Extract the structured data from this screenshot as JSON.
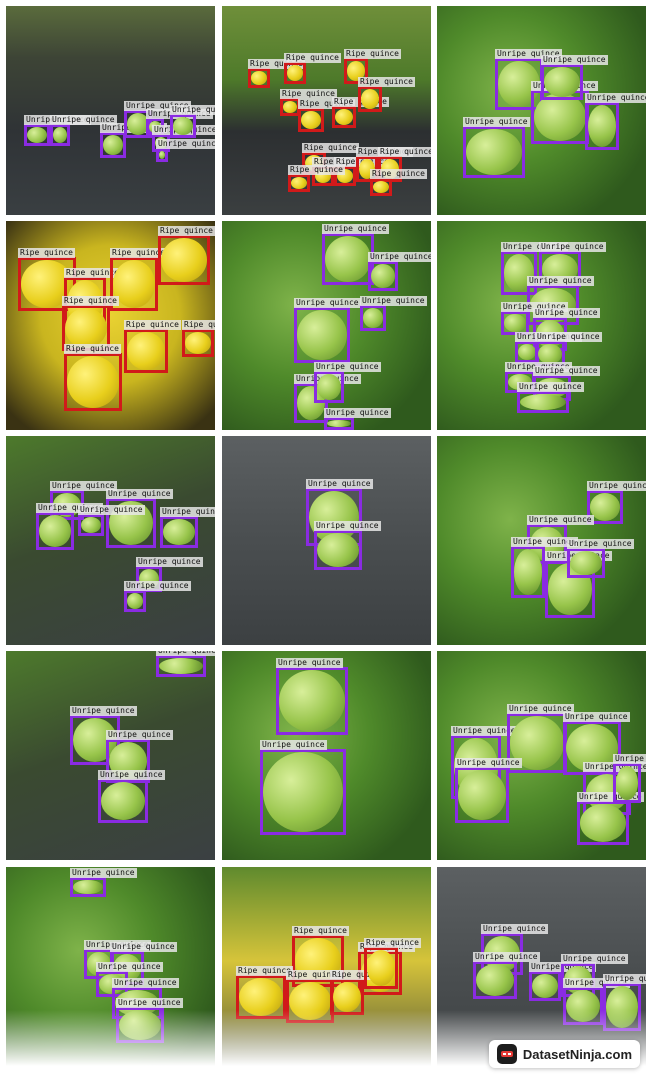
{
  "brand": {
    "name": "DatasetNinja.com",
    "icon": "ninja-logo-icon"
  },
  "colors": {
    "unripe": "#8a2be2",
    "ripe": "#d11a1a"
  },
  "tiles": [
    {
      "scene": "ground-mat",
      "labels": [
        "Unripe quince",
        "Unripe quince",
        "Unripe quince",
        "Unripe quince",
        "Unripe quince",
        "Unripe quince",
        "Unripe quince",
        "Unripe quince"
      ]
    },
    {
      "scene": "orchard-rows",
      "labels": [
        "Ripe quince",
        "Ripe quince",
        "Ripe quince",
        "Ripe quince",
        "Ripe quince",
        "Ripe quince",
        "Ripe quince",
        "Ripe quince",
        "Ripe quince",
        "Ripe quince",
        "Ripe quince",
        "Ripe quince",
        "Ripe quince",
        "Ripe quince"
      ]
    },
    {
      "scene": "leafy-green",
      "labels": [
        "Unripe quince",
        "Unripe quince",
        "Unripe quince",
        "Unripe quince",
        "Unripe quince"
      ]
    },
    {
      "scene": "ripe-pile",
      "labels": [
        "Ripe quince",
        "Ripe quince",
        "Ripe quince",
        "Ripe quince",
        "Ripe quince",
        "Ripe quince",
        "Ripe quince",
        "Ripe quince"
      ]
    },
    {
      "scene": "leafy-green",
      "labels": [
        "Unripe quince",
        "Unripe quince",
        "Unripe quince",
        "Unripe quince",
        "Unripe quince",
        "Unripe quince",
        "Unripe quince"
      ]
    },
    {
      "scene": "leafy-green",
      "labels": [
        "Unripe quince",
        "Unripe quince",
        "Unripe quince",
        "Unripe quince",
        "Unripe quince",
        "Unripe quince",
        "Unripe quince",
        "Unripe quince",
        "Unripe quince",
        "Unripe quince"
      ]
    },
    {
      "scene": "branch-mat",
      "labels": [
        "Unripe quince",
        "Unripe quince",
        "Unripe quince",
        "Unripe quince",
        "Unripe quince",
        "Unripe quince",
        "Unripe quince"
      ]
    },
    {
      "scene": "grey-mat",
      "labels": [
        "Unripe quince",
        "Unripe quince"
      ]
    },
    {
      "scene": "leafy-green",
      "labels": [
        "Unripe quince",
        "Unripe quince",
        "Unripe quince",
        "Unripe quince",
        "Unripe quince"
      ]
    },
    {
      "scene": "branch-mat",
      "labels": [
        "Unripe quince",
        "Unripe quince",
        "Unripe quince",
        "Unripe quince"
      ]
    },
    {
      "scene": "leafy-green",
      "labels": [
        "Unripe quince",
        "Unripe quince"
      ]
    },
    {
      "scene": "leafy-green",
      "labels": [
        "Unripe quince",
        "Unripe quince",
        "Unripe quince",
        "Unripe quince",
        "Unripe quince",
        "Unripe quince",
        "Unripe quince"
      ]
    },
    {
      "scene": "leafy-green",
      "labels": [
        "Unripe quince",
        "Unripe quince",
        "Unripe quince",
        "Unripe quince",
        "Unripe quince",
        "Unripe quince"
      ]
    },
    {
      "scene": "ripe-orchard",
      "labels": [
        "Ripe quince",
        "Ripe quince",
        "Ripe quince",
        "Ripe quince",
        "Ripe quince",
        "Ripe quince"
      ]
    },
    {
      "scene": "grey-mat",
      "labels": [
        "Unripe quince",
        "Unripe quince",
        "Unripe quince",
        "Unripe quince",
        "Unripe quince",
        "Unripe quince"
      ]
    }
  ]
}
